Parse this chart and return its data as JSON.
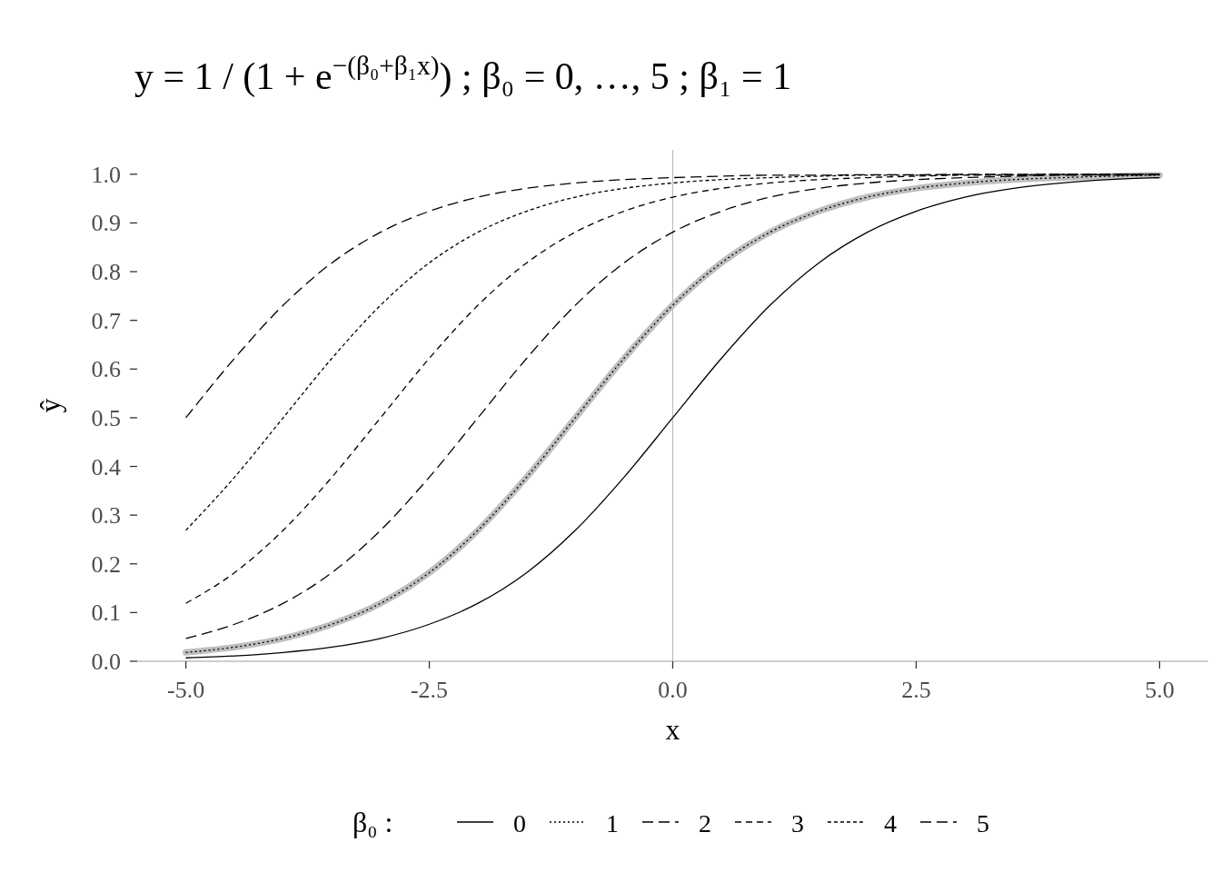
{
  "chart_data": {
    "type": "line",
    "title": "y = 1 / (1 + e$^{−(β₀+β₁x)}$) ; β₀ = 0, …, 5 ; β₁ = 1",
    "xlabel": "x",
    "ylabel": "ŷ",
    "legend_title": "β₀ :",
    "legend": "bottom",
    "grid": false,
    "x": [
      -5,
      -4.5,
      -4,
      -3.5,
      -3,
      -2.5,
      -2,
      -1.5,
      -1,
      -0.5,
      0,
      0.5,
      1,
      1.5,
      2,
      2.5,
      3,
      3.5,
      4,
      4.5,
      5
    ],
    "xlim": [
      -5.5,
      5.5
    ],
    "xticks": [
      {
        "value": -5,
        "label": "-5.0"
      },
      {
        "value": -2.5,
        "label": "-2.5"
      },
      {
        "value": 0,
        "label": "0.0"
      },
      {
        "value": 2.5,
        "label": "2.5"
      },
      {
        "value": 5,
        "label": "5.0"
      }
    ],
    "ylim": [
      0,
      1.05
    ],
    "yticks": [
      {
        "value": 0,
        "label": "0.0"
      },
      0.1,
      0.2,
      0.3,
      0.4,
      0.5,
      0.6,
      0.7,
      0.8,
      0.9,
      {
        "value": 1,
        "label": "1.0"
      }
    ],
    "ref_lines": [
      {
        "axis": "x",
        "value": 0,
        "color": "#bebebe",
        "line_style": "solid"
      }
    ],
    "series": [
      {
        "color": "#bebebe",
        "line_style": "solid",
        "values": [
          0.018,
          0.029,
          0.047,
          0.076,
          0.119,
          0.182,
          0.269,
          0.378,
          0.5,
          0.622,
          0.731,
          0.818,
          0.881,
          0.924,
          0.953,
          0.971,
          0.982,
          0.989,
          0.993,
          0.996,
          0.998
        ]
      },
      {
        "name": "0",
        "color": "#000000",
        "line_style": "solid",
        "values": [
          0.007,
          0.011,
          0.018,
          0.029,
          0.047,
          0.076,
          0.119,
          0.182,
          0.269,
          0.378,
          0.5,
          0.622,
          0.731,
          0.818,
          0.881,
          0.924,
          0.953,
          0.971,
          0.982,
          0.989,
          0.993
        ]
      },
      {
        "name": "1",
        "color": "#000000",
        "line_style": "dotted",
        "values": [
          0.018,
          0.029,
          0.047,
          0.076,
          0.119,
          0.182,
          0.269,
          0.378,
          0.5,
          0.622,
          0.731,
          0.818,
          0.881,
          0.924,
          0.953,
          0.971,
          0.982,
          0.989,
          0.993,
          0.996,
          0.998
        ]
      },
      {
        "name": "2",
        "color": "#000000",
        "line_style": "dashed",
        "values": [
          0.047,
          0.076,
          0.119,
          0.182,
          0.269,
          0.378,
          0.5,
          0.622,
          0.731,
          0.818,
          0.881,
          0.924,
          0.953,
          0.971,
          0.982,
          0.989,
          0.993,
          0.996,
          0.998,
          0.998,
          0.999
        ]
      },
      {
        "name": "3",
        "color": "#000000",
        "line_style": "dashed",
        "values": [
          0.119,
          0.182,
          0.269,
          0.378,
          0.5,
          0.622,
          0.731,
          0.818,
          0.881,
          0.924,
          0.953,
          0.971,
          0.982,
          0.989,
          0.993,
          0.996,
          0.998,
          0.998,
          0.999,
          0.999,
          1
        ]
      },
      {
        "name": "4",
        "color": "#000000",
        "line_style": "dotted",
        "values": [
          0.269,
          0.378,
          0.5,
          0.622,
          0.731,
          0.818,
          0.881,
          0.924,
          0.953,
          0.971,
          0.982,
          0.989,
          0.993,
          0.996,
          0.998,
          0.998,
          0.999,
          0.999,
          1,
          1,
          1
        ]
      },
      {
        "name": "5",
        "color": "#000000",
        "line_style": "dashed",
        "values": [
          0.5,
          0.622,
          0.731,
          0.818,
          0.881,
          0.924,
          0.953,
          0.971,
          0.982,
          0.989,
          0.993,
          0.996,
          0.998,
          0.998,
          0.999,
          0.999,
          1,
          1,
          1,
          1,
          1
        ]
      }
    ]
  }
}
